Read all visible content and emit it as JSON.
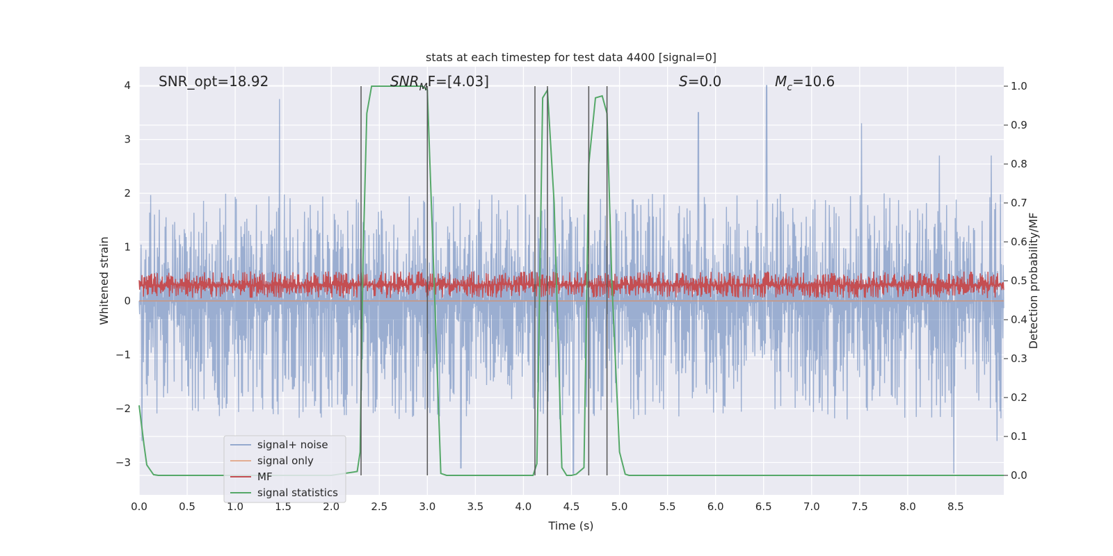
{
  "chart_data": {
    "type": "line",
    "title": "stats at each timestep for test data 4400 [signal=0]",
    "xlabel": "Time (s)",
    "ylabel_left": "Whitened strain",
    "ylabel_right": "Detection probability/MF",
    "xlim": [
      0,
      9.0
    ],
    "ylim_left": [
      -3.6,
      4.35
    ],
    "ylim_right": [
      -0.05,
      1.05
    ],
    "x_ticks": [
      "0.0",
      "0.5",
      "1.0",
      "1.5",
      "2.0",
      "2.5",
      "3.0",
      "3.5",
      "4.0",
      "4.5",
      "5.0",
      "5.5",
      "6.0",
      "6.5",
      "7.0",
      "7.5",
      "8.0",
      "8.5"
    ],
    "x_tick_values": [
      0,
      0.5,
      1,
      1.5,
      2,
      2.5,
      3,
      3.5,
      4,
      4.5,
      5,
      5.5,
      6,
      6.5,
      7,
      7.5,
      8,
      8.5
    ],
    "y_ticks_left": [
      "−3",
      "−2",
      "−1",
      "0",
      "1",
      "2",
      "3",
      "4"
    ],
    "y_tick_values_left": [
      -3,
      -2,
      -1,
      0,
      1,
      2,
      3,
      4
    ],
    "y_ticks_right": [
      "0.0",
      "0.1",
      "0.2",
      "0.3",
      "0.4",
      "0.5",
      "0.6",
      "0.7",
      "0.8",
      "0.9",
      "1.0"
    ],
    "y_tick_values_right": [
      0,
      0.1,
      0.2,
      0.3,
      0.4,
      0.5,
      0.6,
      0.7,
      0.8,
      0.9,
      1.0
    ],
    "grid": true,
    "legend_position": "lower-left",
    "annotations": {
      "snr_opt": "SNR_opt=18.92",
      "snr_mf_main": "SNR",
      "snr_mf_sub": "M",
      "snr_mf_rest": "F=[4.03]",
      "s_main": "S",
      "s_rest": "=0.0",
      "mc_main": "M",
      "mc_sub": "c",
      "mc_rest": "=10.6"
    },
    "series": [
      {
        "name": "signal+ noise",
        "axis": "left",
        "color": "#4c72b0",
        "style": "noise",
        "mean": 0,
        "envelope_pos": 2.0,
        "envelope_neg": -2.2,
        "peaks": [
          [
            1.46,
            3.75
          ],
          [
            5.82,
            3.5
          ],
          [
            6.53,
            4.0
          ],
          [
            7.52,
            3.3
          ],
          [
            8.33,
            2.7
          ],
          [
            8.87,
            2.7
          ]
        ],
        "troughs": [
          [
            0.03,
            -2.6
          ],
          [
            3.35,
            -3.1
          ],
          [
            4.52,
            -3.2
          ],
          [
            8.48,
            -3.2
          ],
          [
            8.93,
            -2.6
          ]
        ]
      },
      {
        "name": "signal only",
        "axis": "left",
        "color": "#dd8452",
        "style": "flat",
        "values": [
          0,
          0
        ]
      },
      {
        "name": "MF",
        "axis": "left",
        "color": "#c44e52",
        "style": "noise",
        "mean": 0.3,
        "envelope_pos": 0.55,
        "envelope_neg": 0.05,
        "peaks": [],
        "troughs": []
      },
      {
        "name": "signal statistics",
        "axis": "right",
        "color": "#55a868",
        "style": "line",
        "x": [
          0,
          0.05,
          0.08,
          0.15,
          0.2,
          0.5,
          1.0,
          1.5,
          2.0,
          2.27,
          2.3,
          2.33,
          2.37,
          2.42,
          2.5,
          2.75,
          2.95,
          3.0,
          3.07,
          3.14,
          3.2,
          3.5,
          3.8,
          4.1,
          4.14,
          4.2,
          4.25,
          4.32,
          4.4,
          4.45,
          4.5,
          4.55,
          4.63,
          4.68,
          4.75,
          4.82,
          4.87,
          4.92,
          5.0,
          5.06,
          5.1,
          5.5,
          6.0,
          7.0,
          8.0,
          9.0
        ],
        "values": [
          0.18,
          0.08,
          0.027,
          0.002,
          0.0,
          0.0,
          0.0,
          0.0,
          0.0,
          0.01,
          0.06,
          0.55,
          0.93,
          1.0,
          1.0,
          1.0,
          1.0,
          0.99,
          0.5,
          0.005,
          0.0,
          0.0,
          0.0,
          0.0,
          0.03,
          0.97,
          0.99,
          0.7,
          0.02,
          0.0,
          0.0,
          0.003,
          0.02,
          0.8,
          0.97,
          0.975,
          0.93,
          0.5,
          0.06,
          0.003,
          0.0,
          0.0,
          0.0,
          0.0,
          0.0,
          0.0
        ]
      }
    ],
    "vertical_lines": [
      2.31,
      3.0,
      4.12,
      4.25,
      4.68,
      4.87
    ]
  }
}
